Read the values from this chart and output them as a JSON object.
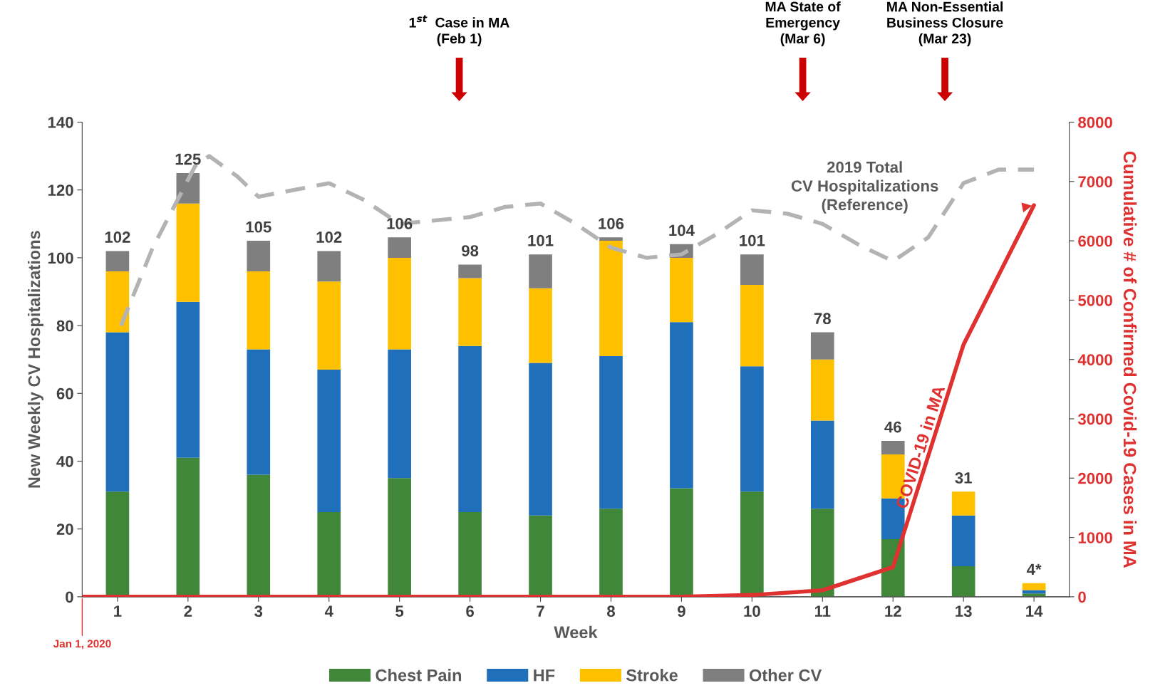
{
  "chart_data": {
    "type": "bar",
    "stacked": true,
    "xlabel": "Week",
    "ylabel": "New Weekly CV Hospitalizations",
    "y2label": "Cumulative # of Confirmed Covid-19 Cases in MA",
    "x": [
      1,
      2,
      3,
      4,
      5,
      6,
      7,
      8,
      9,
      10,
      11,
      12,
      13,
      14
    ],
    "xlim": [
      0.5,
      14.5
    ],
    "xticks": [
      1,
      2,
      3,
      4,
      5,
      6,
      7,
      8,
      9,
      10,
      11,
      12,
      13,
      14
    ],
    "ylim": [
      0,
      140
    ],
    "yticks": [
      0,
      20,
      40,
      60,
      80,
      100,
      120,
      140
    ],
    "y2lim": [
      0,
      8000
    ],
    "y2ticks": [
      0,
      1000,
      2000,
      3000,
      4000,
      5000,
      6000,
      7000,
      8000
    ],
    "series": [
      {
        "name": "Chest Pain",
        "color": "#41873a",
        "values": [
          31,
          41,
          36,
          25,
          35,
          25,
          24,
          26,
          32,
          31,
          26,
          17,
          9,
          1
        ]
      },
      {
        "name": "HF",
        "color": "#1f6fba",
        "values": [
          47,
          46,
          37,
          42,
          38,
          49,
          45,
          45,
          49,
          37,
          26,
          12,
          15,
          1
        ]
      },
      {
        "name": "Stroke",
        "color": "#ffc000",
        "values": [
          18,
          29,
          23,
          26,
          27,
          20,
          22,
          34,
          19,
          24,
          18,
          13,
          7,
          2
        ]
      },
      {
        "name": "Other CV",
        "color": "#7f7f7f",
        "values": [
          6,
          9,
          9,
          9,
          6,
          4,
          10,
          1,
          4,
          9,
          8,
          4,
          0,
          0
        ]
      },
      {
        "name": "2019 Total\nCV Hospitalizations\n(Reference)",
        "type": "line",
        "line_style": "dashed",
        "color": "#b3b3b3",
        "x": [
          1.05,
          1.5,
          2.1,
          2.3,
          2.7,
          3.0,
          3.5,
          4.0,
          4.5,
          5.0,
          5.5,
          6.0,
          6.5,
          7.0,
          7.5,
          8.0,
          8.5,
          9.0,
          9.5,
          10.0,
          10.5,
          11.0,
          11.5,
          12.0,
          12.5,
          13.0,
          13.5,
          14.0
        ],
        "values": [
          80,
          103,
          127,
          130,
          124,
          118,
          120,
          122,
          117,
          110,
          111,
          112,
          115,
          116,
          110,
          103,
          100,
          101,
          107,
          114,
          113,
          110,
          104,
          99,
          106,
          122,
          126,
          126
        ]
      },
      {
        "name": "COVID-19 in MA",
        "type": "line",
        "axis": "y2",
        "line_style": "solid",
        "color": "#e03131",
        "x": [
          0.5,
          1,
          2,
          3,
          4,
          5,
          6,
          7,
          8,
          9,
          10,
          11,
          12,
          13,
          14
        ],
        "values": [
          0,
          0,
          0,
          0,
          0,
          0,
          0,
          0,
          0,
          0,
          30,
          110,
          500,
          4250,
          6600
        ]
      }
    ],
    "totals": [
      "102",
      "125",
      "105",
      "102",
      "106",
      "98",
      "101",
      "106",
      "104",
      "101",
      "78",
      "46",
      "31",
      "4*"
    ],
    "annotations": [
      "1$^{st}$  Case in MA\n(Feb 1)",
      "MA State of\nEmergency\n(Mar 6)",
      "MA Non-Essential\nBusiness Closure\n(Mar 23)",
      {
        "text": "Jan 1, 2020",
        "x": 0.5
      }
    ],
    "legend": "bottom",
    "grid": false
  }
}
